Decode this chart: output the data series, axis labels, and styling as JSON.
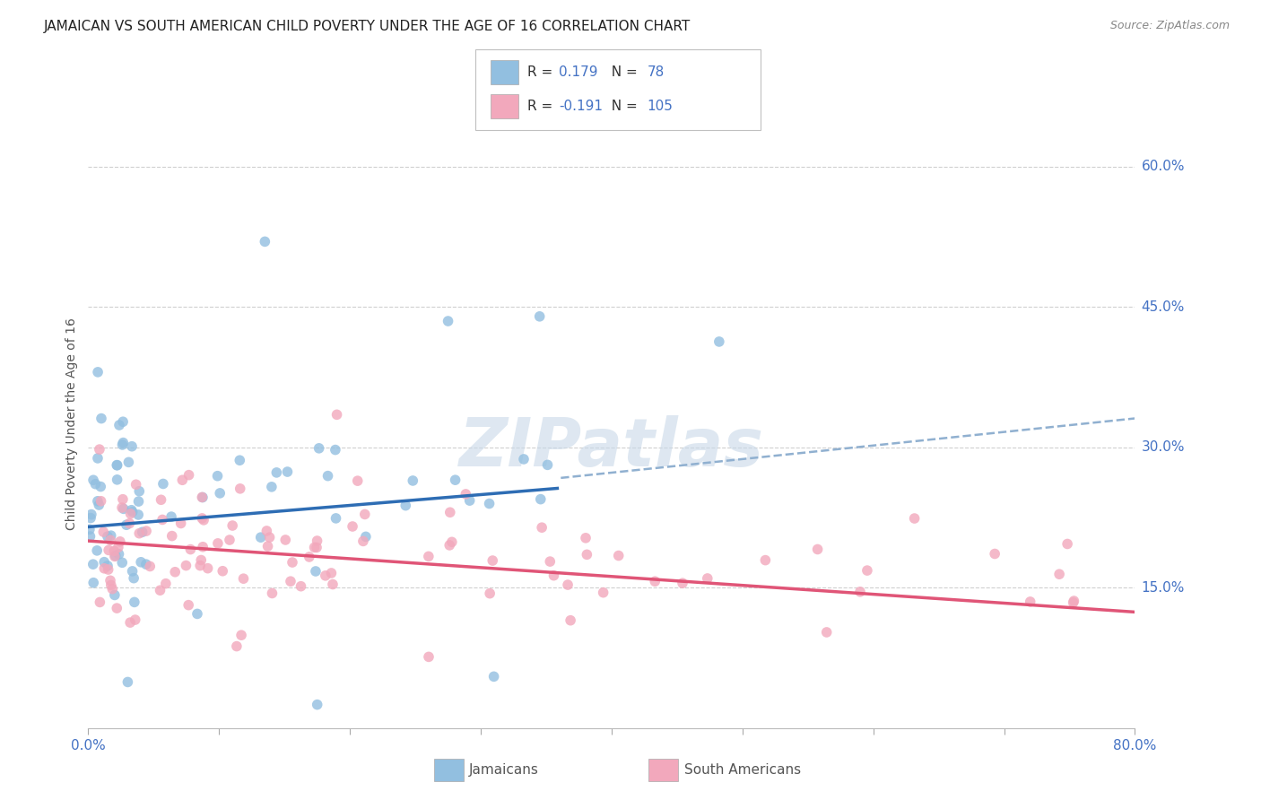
{
  "title": "JAMAICAN VS SOUTH AMERICAN CHILD POVERTY UNDER THE AGE OF 16 CORRELATION CHART",
  "source": "Source: ZipAtlas.com",
  "ylabel": "Child Poverty Under the Age of 16",
  "xlim": [
    0,
    0.8
  ],
  "ylim": [
    0,
    0.65
  ],
  "xticks": [
    0.0,
    0.1,
    0.2,
    0.3,
    0.4,
    0.5,
    0.6,
    0.7,
    0.8
  ],
  "xticklabels": [
    "0.0%",
    "",
    "",
    "",
    "",
    "",
    "",
    "",
    "80.0%"
  ],
  "yticks_right": [
    0.15,
    0.3,
    0.45,
    0.6
  ],
  "ytick_labels_right": [
    "15.0%",
    "30.0%",
    "45.0%",
    "60.0%"
  ],
  "blue_color": "#92bfe0",
  "pink_color": "#f2a8bc",
  "trend_blue_color": "#2e6db4",
  "trend_pink_color": "#e05577",
  "trend_dashed_color": "#90b0d0",
  "watermark": "ZIPatlas",
  "axis_label_color": "#4472c4",
  "title_color": "#222222",
  "grid_color": "#d0d0d0",
  "blue_r": 0.179,
  "blue_n": 78,
  "pink_r": -0.191,
  "pink_n": 105,
  "blue_intercept": 0.215,
  "blue_slope": 0.115,
  "pink_intercept": 0.2,
  "pink_slope": -0.095,
  "blue_line_end": 0.36,
  "dashed_intercept": 0.215,
  "dashed_slope": 0.145
}
